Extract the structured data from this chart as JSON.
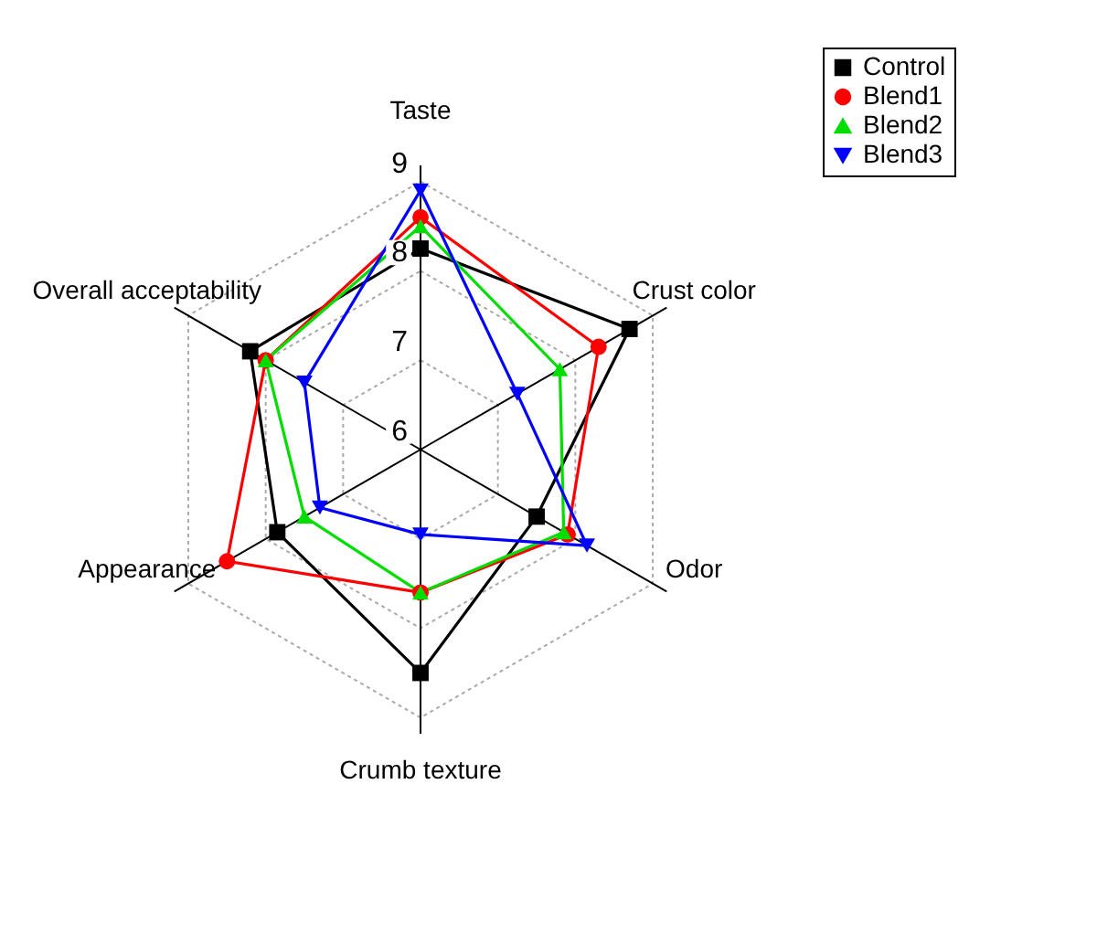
{
  "chart_data": {
    "type": "radar",
    "categories": [
      "Taste",
      "Crust color",
      "Odor",
      "Crumb texture",
      "Appearance",
      "Overall acceptability"
    ],
    "ylim": [
      6,
      9
    ],
    "yticks": [
      6,
      7,
      8,
      9
    ],
    "grid": true,
    "legend": "right",
    "series": [
      {
        "name": "Control",
        "color": "#000000",
        "marker": "square",
        "values": [
          8.25,
          8.7,
          7.5,
          8.5,
          7.85,
          8.2
        ]
      },
      {
        "name": "Blend1",
        "color": "#ff0000",
        "marker": "circle",
        "values": [
          8.6,
          8.3,
          7.9,
          7.6,
          8.5,
          8.0
        ]
      },
      {
        "name": "Blend2",
        "color": "#00dd00",
        "marker": "triangle",
        "values": [
          8.5,
          7.8,
          7.85,
          7.6,
          7.5,
          8.0
        ]
      },
      {
        "name": "Blend3",
        "color": "#0000ff",
        "marker": "triangle-down",
        "values": [
          8.9,
          7.25,
          8.15,
          6.95,
          7.3,
          7.5
        ]
      }
    ]
  }
}
